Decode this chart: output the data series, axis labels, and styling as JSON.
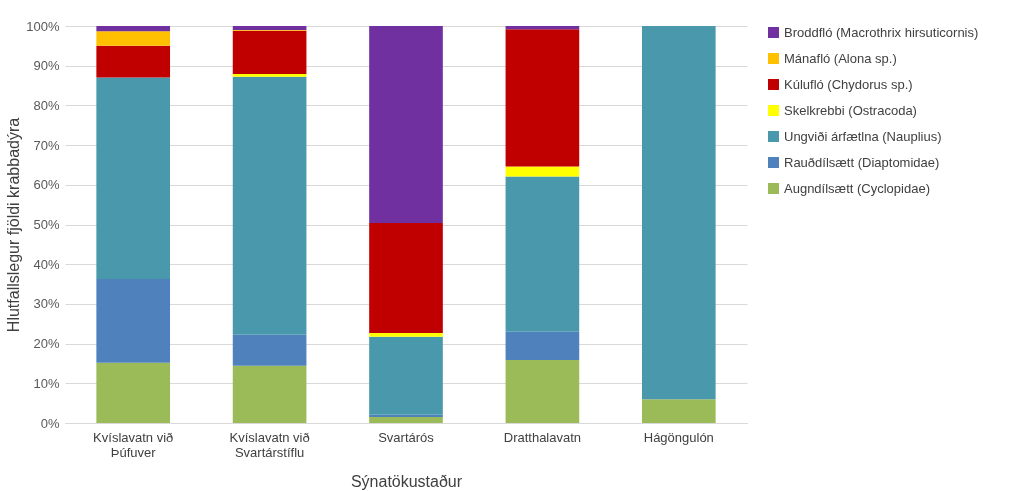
{
  "chart_data": {
    "type": "bar",
    "stacked": true,
    "xlabel": "Sýnatökustaður",
    "ylabel": "Hlutfallslegur fjöldi krabbadýra",
    "categories": [
      "Kvíslavatn við Þúfuver",
      "Kvíslavatn við Svartárstíflu",
      "Svartárós",
      "Dratthalavatn",
      "Hágöngulón"
    ],
    "series": [
      {
        "name": "Augndílsætt (Cyclopidae)",
        "color": "#9bbb59",
        "values": [
          15.2,
          14.4,
          1.5,
          15.9,
          6.0
        ]
      },
      {
        "name": "Rauðdílsætt (Diaptomidae)",
        "color": "#4f81bd",
        "values": [
          21.1,
          7.8,
          0.6,
          7.1,
          null
        ]
      },
      {
        "name": "Ungviði árfætlna (Nauplius)",
        "color": "#4a98ac",
        "values": [
          50.7,
          65.0,
          19.6,
          39.1,
          94.0
        ]
      },
      {
        "name": "Skelkrebbi (Ostracoda)",
        "color": "#ffff00",
        "values": [
          null,
          0.7,
          1.0,
          2.5,
          null
        ]
      },
      {
        "name": "Kúlufló (Chydorus sp.)",
        "color": "#c00000",
        "values": [
          8.0,
          10.9,
          27.7,
          34.6,
          null
        ]
      },
      {
        "name": "Mánafló (Alona sp.)",
        "color": "#ffc000",
        "values": [
          3.7,
          0.2,
          null,
          null,
          null
        ]
      },
      {
        "name": "Broddfló (Macrothrix hirsuticornis)",
        "color": "#7030a0",
        "values": [
          1.3,
          1.0,
          49.6,
          0.8,
          null
        ]
      }
    ],
    "ylim": [
      0,
      100
    ],
    "yticks": [
      {
        "value": 0,
        "label": "0%"
      },
      {
        "value": 10,
        "label": "10%"
      },
      {
        "value": 20,
        "label": "20%"
      },
      {
        "value": 30,
        "label": "30%"
      },
      {
        "value": 40,
        "label": "40%"
      },
      {
        "value": 50,
        "label": "50%"
      },
      {
        "value": 60,
        "label": "60%"
      },
      {
        "value": 70,
        "label": "70%"
      },
      {
        "value": 80,
        "label": "80%"
      },
      {
        "value": 90,
        "label": "90%"
      },
      {
        "value": 100,
        "label": "100%"
      }
    ],
    "grid": "y",
    "legend": "right"
  }
}
